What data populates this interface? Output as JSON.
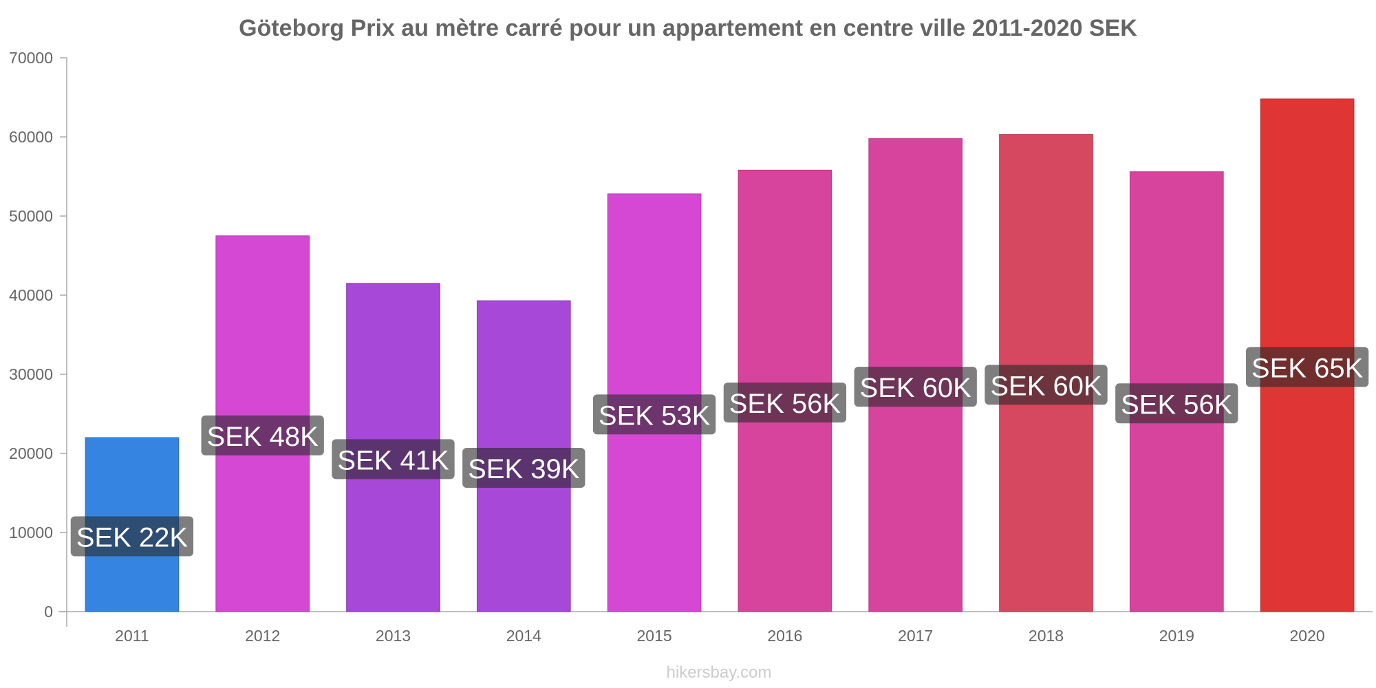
{
  "chart_data": {
    "type": "bar",
    "title": "Göteborg Prix au mètre carré pour un appartement en centre ville 2011-2020 SEK",
    "categories": [
      "2011",
      "2012",
      "2013",
      "2014",
      "2015",
      "2016",
      "2017",
      "2018",
      "2019",
      "2020"
    ],
    "values": [
      22000,
      47500,
      41500,
      39300,
      52800,
      55800,
      59800,
      60300,
      55600,
      64800
    ],
    "data_labels": [
      "SEK 22K",
      "SEK 48K",
      "SEK 41K",
      "SEK 39K",
      "SEK 53K",
      "SEK 56K",
      "SEK 60K",
      "SEK 60K",
      "SEK 56K",
      "SEK 65K"
    ],
    "colors": [
      "#3584e1",
      "#d448d4",
      "#a748d9",
      "#a748d9",
      "#d448d4",
      "#d6449e",
      "#d6449e",
      "#d6485f",
      "#d6449e",
      "#e03535"
    ],
    "yticks": [
      "0",
      "10000",
      "20000",
      "30000",
      "40000",
      "50000",
      "60000",
      "70000"
    ],
    "ylim": [
      0,
      70000
    ],
    "xlabel": "",
    "ylabel": "",
    "grid": false,
    "legend": false
  },
  "watermark": "hikersbay.com"
}
